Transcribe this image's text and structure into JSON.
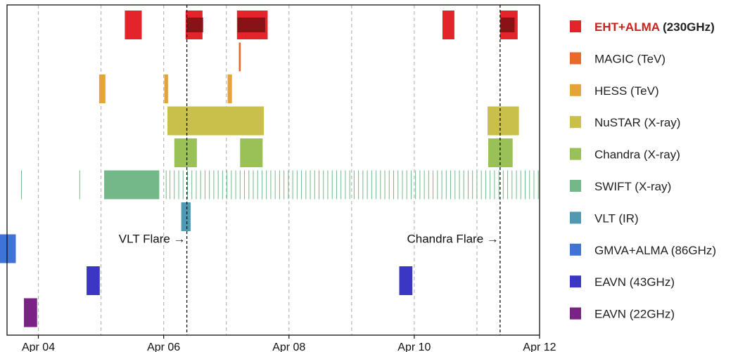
{
  "chart_data": {
    "type": "timeline",
    "x_axis": {
      "unit": "date",
      "range": [
        "2017-04-03.5",
        "2017-04-12"
      ],
      "ticks": [
        {
          "value": 4,
          "label": "Apr 04"
        },
        {
          "value": 6,
          "label": "Apr 06"
        },
        {
          "value": 8,
          "label": "Apr 08"
        },
        {
          "value": 10,
          "label": "Apr 10"
        },
        {
          "value": 12,
          "label": "Apr 12"
        }
      ],
      "gridlines": [
        4,
        5,
        6,
        7,
        8,
        9,
        10,
        11
      ]
    },
    "day_range": [
      3.0,
      12.0
    ],
    "series": [
      {
        "name": "EHT+ALMA",
        "name_suffix": " (230GHz)",
        "color": "#e3242b",
        "label_color": "#c8231f",
        "bold": true,
        "bars": [
          [
            5.38,
            5.65
          ],
          [
            6.35,
            6.62
          ],
          [
            7.17,
            7.66
          ],
          [
            10.45,
            10.64
          ],
          [
            11.37,
            11.65
          ]
        ],
        "dark_bars": [
          [
            6.37,
            6.63
          ],
          [
            7.18,
            7.62
          ],
          [
            11.38,
            11.6
          ]
        ]
      },
      {
        "name": "MAGIC (TeV)",
        "color": "#e86a2b",
        "bars": [
          [
            7.2,
            7.23
          ]
        ]
      },
      {
        "name": "HESS (TeV)",
        "color": "#e5a43a",
        "bars": [
          [
            4.97,
            5.07
          ],
          [
            6.01,
            6.07
          ],
          [
            7.02,
            7.09
          ]
        ]
      },
      {
        "name": "NuSTAR (X-ray)",
        "color": "#c8c04a",
        "bars": [
          [
            6.06,
            7.6
          ],
          [
            11.17,
            11.67
          ]
        ]
      },
      {
        "name": "Chandra (X-ray)",
        "color": "#9ac158",
        "bars": [
          [
            6.17,
            6.53
          ],
          [
            7.22,
            7.58
          ],
          [
            11.18,
            11.57
          ]
        ]
      },
      {
        "name": "SWIFT (X-ray)",
        "color": "#74b889",
        "bars": [
          [
            5.05,
            5.93
          ]
        ],
        "ticks": [
          3.73,
          4.66,
          6.04,
          6.1,
          6.17,
          6.24,
          6.31,
          6.38,
          6.45,
          6.52,
          6.59,
          6.66,
          6.73,
          6.8,
          6.87,
          6.94,
          7.01,
          7.08,
          7.15,
          7.22,
          7.29,
          7.36,
          7.43,
          7.5,
          7.57,
          7.64,
          7.71,
          7.78,
          7.85,
          7.92,
          7.99,
          8.06,
          8.13,
          8.2,
          8.27,
          8.34,
          8.41,
          8.48,
          8.55,
          8.62,
          8.69,
          8.76,
          8.83,
          8.9,
          8.97,
          9.04,
          9.11,
          9.18,
          9.25,
          9.32,
          9.39,
          9.46,
          9.53,
          9.6,
          9.67,
          9.74,
          9.81,
          9.88,
          9.95,
          10.02,
          10.09,
          10.16,
          10.23,
          10.3,
          10.37,
          10.44,
          10.51,
          10.58,
          10.65,
          10.72,
          10.79,
          10.86,
          10.93,
          11.0,
          11.07,
          11.14,
          11.21,
          11.28,
          11.35,
          11.42,
          11.49,
          11.56,
          11.63,
          11.7,
          11.77,
          11.84,
          11.91,
          11.98
        ]
      },
      {
        "name": "VLT (IR)",
        "color": "#4f9ab3",
        "bars": [
          [
            6.28,
            6.43
          ]
        ]
      },
      {
        "name": "GMVA+ALMA (86GHz)",
        "color": "#3f74d6",
        "bars": [
          [
            3.12,
            3.64
          ]
        ]
      },
      {
        "name": "EAVN (43GHz)",
        "color": "#3b36c4",
        "bars": [
          [
            4.77,
            4.98
          ],
          [
            9.76,
            9.97
          ]
        ]
      },
      {
        "name": "EAVN (22GHz)",
        "color": "#7a2286",
        "bars": [
          [
            3.77,
            3.98
          ]
        ]
      }
    ],
    "markers": [
      {
        "value": 6.37,
        "label": "VLT Flare →",
        "row": 7
      },
      {
        "value": 11.37,
        "label": "Chandra Flare →",
        "row": 7
      }
    ]
  }
}
